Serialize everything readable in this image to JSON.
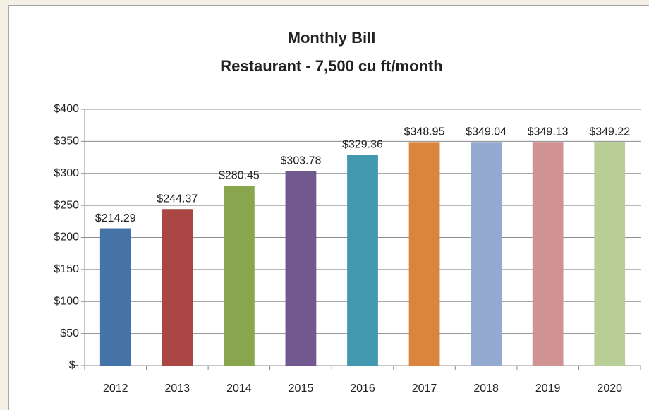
{
  "chart_data": {
    "type": "bar",
    "title": "Monthly Bill",
    "subtitle": "Restaurant - 7,500 cu ft/month",
    "categories": [
      "2012",
      "2013",
      "2014",
      "2015",
      "2016",
      "2017",
      "2018",
      "2019",
      "2020"
    ],
    "values": [
      214.29,
      244.37,
      280.45,
      303.78,
      329.36,
      348.95,
      349.04,
      349.13,
      349.22
    ],
    "value_labels": [
      "$214.29",
      "$244.37",
      "$280.45",
      "$303.78",
      "$329.36",
      "$348.95",
      "$349.04",
      "$349.13",
      "$349.22"
    ],
    "colors": [
      "#4572a7",
      "#aa4643",
      "#89a54e",
      "#71588f",
      "#4198af",
      "#db843d",
      "#93a9cf",
      "#d19392",
      "#b9cd96"
    ],
    "ylim": [
      0,
      400
    ],
    "yticks": [
      {
        "value": 0,
        "label": "$-"
      },
      {
        "value": 50,
        "label": "$50"
      },
      {
        "value": 100,
        "label": "$100"
      },
      {
        "value": 150,
        "label": "$150"
      },
      {
        "value": 200,
        "label": "$200"
      },
      {
        "value": 250,
        "label": "$250"
      },
      {
        "value": 300,
        "label": "$300"
      },
      {
        "value": 350,
        "label": "$350"
      },
      {
        "value": 400,
        "label": "$400"
      }
    ],
    "grid": true
  }
}
